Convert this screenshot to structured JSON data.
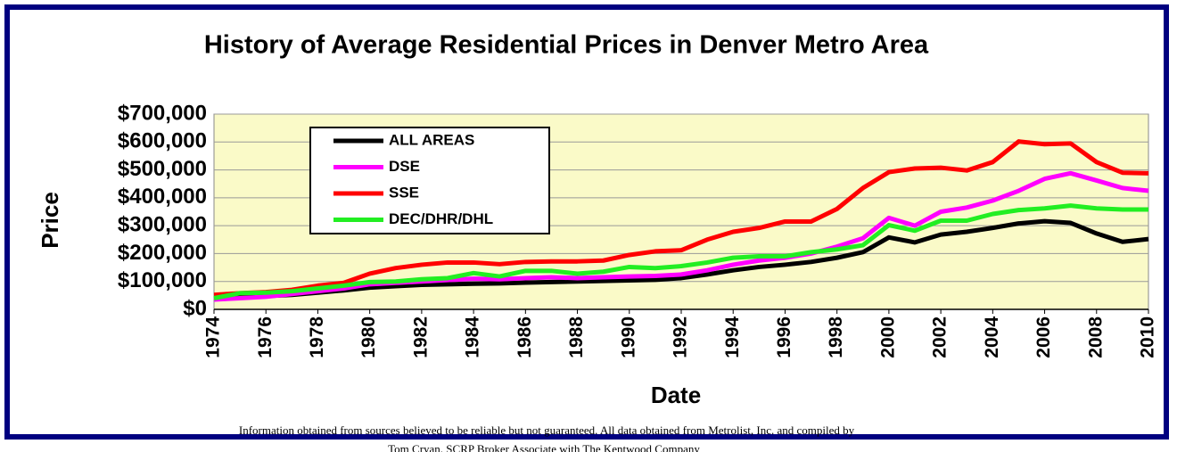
{
  "chart_data": {
    "type": "line",
    "title": "History of Average Residential Prices in Denver Metro Area",
    "x_label": "Date",
    "y_label": "Price",
    "x": [
      1974,
      1975,
      1976,
      1977,
      1978,
      1979,
      1980,
      1981,
      1982,
      1983,
      1984,
      1985,
      1986,
      1987,
      1988,
      1989,
      1990,
      1991,
      1992,
      1993,
      1994,
      1995,
      1996,
      1997,
      1998,
      1999,
      2000,
      2001,
      2002,
      2003,
      2004,
      2005,
      2006,
      2007,
      2008,
      2009,
      2010
    ],
    "series": [
      {
        "name": "ALL AREAS",
        "color": "#000000",
        "values": [
          40000,
          45000,
          48000,
          52000,
          60000,
          68000,
          78000,
          83000,
          88000,
          90000,
          92000,
          93000,
          96000,
          98000,
          100000,
          102000,
          104000,
          106000,
          112000,
          125000,
          140000,
          152000,
          160000,
          170000,
          185000,
          205000,
          258000,
          240000,
          268000,
          278000,
          292000,
          308000,
          316000,
          310000,
          272000,
          242000,
          252000
        ]
      },
      {
        "name": "DSE",
        "color": "#ff00ff",
        "values": [
          35000,
          40000,
          45000,
          55000,
          65000,
          75000,
          90000,
          95000,
          100000,
          105000,
          110000,
          108000,
          112000,
          115000,
          112000,
          115000,
          118000,
          120000,
          125000,
          140000,
          160000,
          175000,
          185000,
          200000,
          225000,
          255000,
          328000,
          300000,
          350000,
          365000,
          390000,
          425000,
          468000,
          488000,
          462000,
          435000,
          425000
        ]
      },
      {
        "name": "SSE",
        "color": "#ff0000",
        "values": [
          52000,
          58000,
          62000,
          70000,
          85000,
          95000,
          128000,
          148000,
          160000,
          168000,
          168000,
          162000,
          170000,
          172000,
          172000,
          175000,
          195000,
          208000,
          212000,
          250000,
          278000,
          292000,
          315000,
          315000,
          360000,
          435000,
          492000,
          505000,
          508000,
          498000,
          528000,
          602000,
          592000,
          595000,
          528000,
          490000,
          488000
        ]
      },
      {
        "name": "DEC/DHR/DHL",
        "color": "#22ee22",
        "values": [
          40000,
          58000,
          60000,
          65000,
          75000,
          85000,
          98000,
          100000,
          108000,
          112000,
          130000,
          118000,
          138000,
          138000,
          128000,
          135000,
          152000,
          148000,
          155000,
          168000,
          185000,
          190000,
          190000,
          205000,
          215000,
          230000,
          302000,
          282000,
          318000,
          318000,
          342000,
          356000,
          362000,
          372000,
          362000,
          358000,
          358000
        ]
      }
    ],
    "xlim": [
      1974,
      2010
    ],
    "xticks": [
      1974,
      1976,
      1978,
      1980,
      1982,
      1984,
      1986,
      1988,
      1990,
      1992,
      1994,
      1996,
      1998,
      2000,
      2002,
      2004,
      2006,
      2008,
      2010
    ],
    "ylim": [
      0,
      700000
    ],
    "yticks": [
      {
        "value": 0,
        "label": "$0"
      },
      {
        "value": 100000,
        "label": "$100,000"
      },
      {
        "value": 200000,
        "label": "$200,000"
      },
      {
        "value": 300000,
        "label": "$300,000"
      },
      {
        "value": 400000,
        "label": "$400,000"
      },
      {
        "value": 500000,
        "label": "$500,000"
      },
      {
        "value": 600000,
        "label": "$600,000"
      },
      {
        "value": 700000,
        "label": "$700,000"
      }
    ],
    "grid": true,
    "legend": "upper left",
    "footnotes": [
      "Information obtained from sources believed to be reliable but not guaranteed.  All data obtained from Metrolist, Inc. and compiled by",
      "Tom Cryan, SCRP Broker Associate with The Kentwood Company"
    ]
  }
}
